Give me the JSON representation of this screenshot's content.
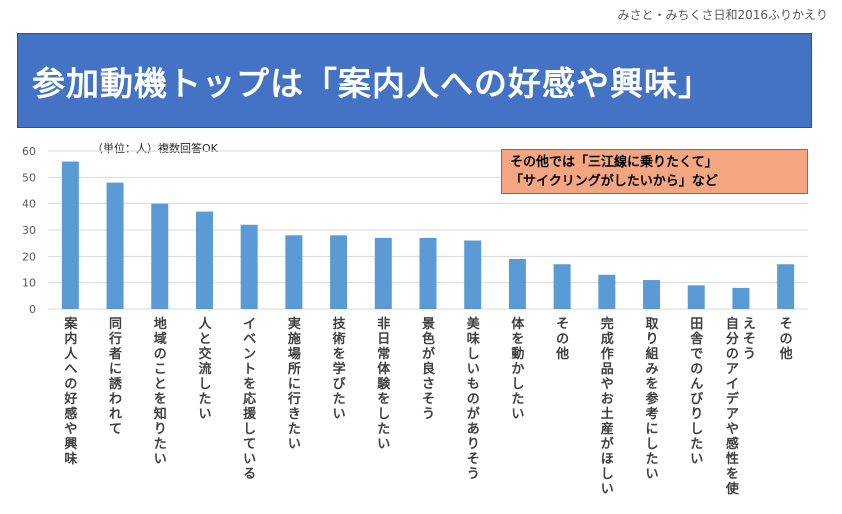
{
  "header": {
    "caption": "みさと・みちくさ日和2016ふりかえり",
    "title": "参加動機トップは「案内人への好感や興味」"
  },
  "chart_data": {
    "type": "bar",
    "note": "（単位：人）複数回答OK",
    "categories": [
      "案内人への好感や興味",
      "同行者に誘われて",
      "地域のことを知りたい",
      "人と交流したい",
      "イベントを応援している",
      "実施場所に行きたい",
      "技術を学びたい",
      "非日常体験をしたい",
      "景色が良さそう",
      "美味しいものがありそう",
      "体を動かしたい",
      "その他",
      "完成作品やお土産がほしい",
      "取り組みを参考にしたい",
      "田舎でのんびりしたい",
      "自分のアイデアや感性を使えそう",
      "その他"
    ],
    "values": [
      56,
      48,
      40,
      37,
      32,
      28,
      28,
      27,
      27,
      26,
      19,
      17,
      13,
      11,
      9,
      8,
      17
    ],
    "yticks": [
      0,
      10,
      20,
      30,
      40,
      50,
      60
    ],
    "ylim": [
      0,
      60
    ],
    "grid": true,
    "bar_color": "#5b9bd5"
  },
  "callout": {
    "line1": "その他では「三江線に乗りたくて」",
    "line2": "「サイクリングがしたいから」など"
  }
}
